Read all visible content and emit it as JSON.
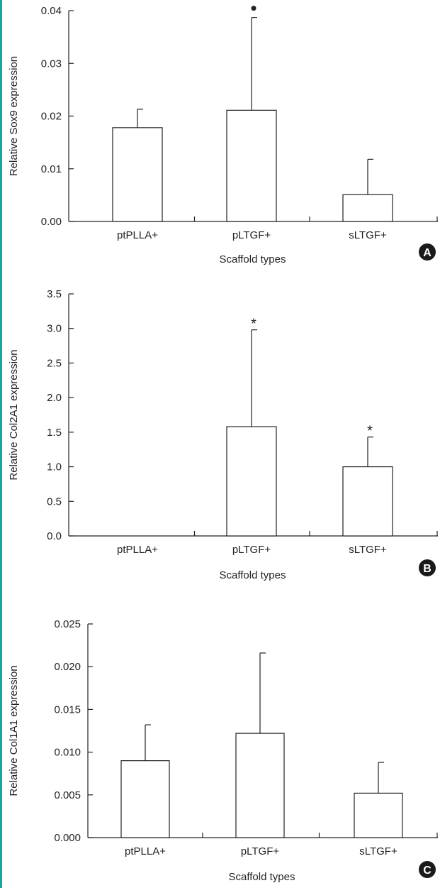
{
  "chart_data": [
    {
      "type": "bar",
      "panel_label": "A",
      "categories": [
        "ptPLLA+",
        "pLTGF+",
        "sLTGF+"
      ],
      "values": [
        0.0178,
        0.0211,
        0.0051
      ],
      "errors": [
        0.0035,
        0.0176,
        0.0067
      ],
      "significance": [
        "",
        "•",
        ""
      ],
      "yticks": [
        0,
        0.01,
        0.02,
        0.03,
        0.04
      ],
      "ytick_labels": [
        "0.00",
        "0.01",
        "0.02",
        "0.03",
        "0.04"
      ],
      "ylim": [
        0,
        0.04
      ],
      "xlabel": "Scaffold types",
      "ylabel": "Relative Sox9 expression",
      "grid": false
    },
    {
      "type": "bar",
      "panel_label": "B",
      "categories": [
        "ptPLLA+",
        "pLTGF+",
        "sLTGF+"
      ],
      "values": [
        0,
        1.58,
        1.0
      ],
      "errors": [
        0,
        1.4,
        0.43
      ],
      "significance": [
        "",
        "*",
        "*"
      ],
      "yticks": [
        0,
        0.5,
        1.0,
        1.5,
        2.0,
        2.5,
        3.0,
        3.5
      ],
      "ytick_labels": [
        "0.0",
        "0.5",
        "1.0",
        "1.5",
        "2.0",
        "2.5",
        "3.0",
        "3.5"
      ],
      "ylim": [
        0,
        3.5
      ],
      "xlabel": "Scaffold types",
      "ylabel": "Relative Col2A1 expression",
      "grid": false
    },
    {
      "type": "bar",
      "panel_label": "C",
      "categories": [
        "ptPLLA+",
        "pLTGF+",
        "sLTGF+"
      ],
      "values": [
        0.009,
        0.0122,
        0.0052
      ],
      "errors": [
        0.0042,
        0.0094,
        0.0036
      ],
      "significance": [
        "",
        "",
        ""
      ],
      "yticks": [
        0,
        0.005,
        0.01,
        0.015,
        0.02,
        0.025
      ],
      "ytick_labels": [
        "0.000",
        "0.005",
        "0.010",
        "0.015",
        "0.020",
        "0.025"
      ],
      "ylim": [
        0,
        0.025
      ],
      "xlabel": "Scaffold types",
      "ylabel": "Relative Col1A1 expression",
      "grid": false
    }
  ]
}
